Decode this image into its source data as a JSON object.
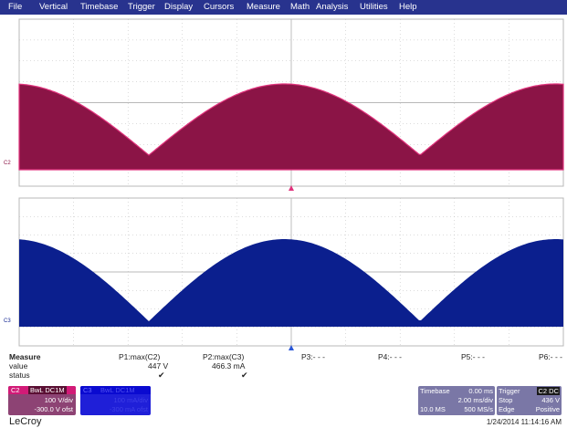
{
  "menu": [
    "File",
    "Vertical",
    "Timebase",
    "Trigger",
    "Display",
    "Cursors",
    "Measure",
    "Math",
    "Analysis",
    "Utilities",
    "Help"
  ],
  "colors": {
    "menubar": "#28338e",
    "trace_c2": "#8b1446",
    "trace_c2_edge": "#e0337c",
    "trace_c3": "#0b1f8e",
    "grid": "#b8b8b8"
  },
  "channels": {
    "c2_marker": "C2",
    "c3_marker": "C3"
  },
  "measure": {
    "title": "Measure",
    "row_value": "value",
    "row_status": "status",
    "params": [
      {
        "label": "P1:max(C2)",
        "value": "447 V",
        "status": "✔"
      },
      {
        "label": "P2:max(C3)",
        "value": "466.3 mA",
        "status": "✔"
      },
      {
        "label": "P3:- - -",
        "value": "",
        "status": ""
      },
      {
        "label": "P4:- - -",
        "value": "",
        "status": ""
      },
      {
        "label": "P5:- - -",
        "value": "",
        "status": ""
      },
      {
        "label": "P6:- - -",
        "value": "",
        "status": ""
      }
    ]
  },
  "c2_badge": {
    "name": "C2",
    "coupling": "BwL DC1M",
    "scale": "100 V/div",
    "offset": "-300.0 V ofst"
  },
  "c3_badge": {
    "name": "C3",
    "coupling": "BwL DC1M",
    "scale": "100 mA/div",
    "offset": "-300 mA ofst"
  },
  "timebase": {
    "label": "Timebase",
    "delay": "0.00 ms",
    "scale": "2.00 ms/div",
    "samples": "10.0 MS",
    "rate": "500 MS/s"
  },
  "trigger": {
    "label": "Trigger",
    "source": "C2 DC",
    "mode": "Stop",
    "level": "436 V",
    "type": "Edge",
    "slope": "Positive"
  },
  "brand": "LeCroy",
  "datetime": "1/24/2014 11:14:16 AM"
}
